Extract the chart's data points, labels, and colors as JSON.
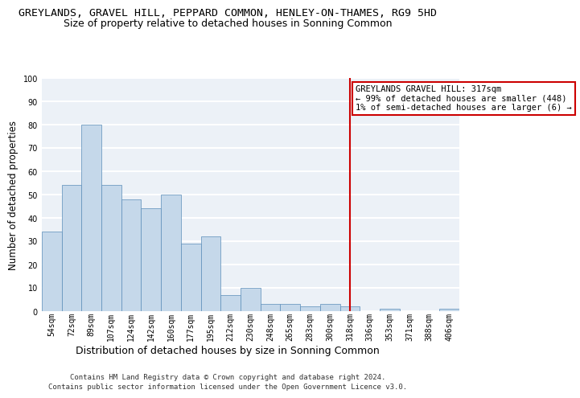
{
  "title_line1": "GREYLANDS, GRAVEL HILL, PEPPARD COMMON, HENLEY-ON-THAMES, RG9 5HD",
  "title_line2": "Size of property relative to detached houses in Sonning Common",
  "xlabel": "Distribution of detached houses by size in Sonning Common",
  "ylabel": "Number of detached properties",
  "footer_line1": "Contains HM Land Registry data © Crown copyright and database right 2024.",
  "footer_line2": "Contains public sector information licensed under the Open Government Licence v3.0.",
  "categories": [
    "54sqm",
    "72sqm",
    "89sqm",
    "107sqm",
    "124sqm",
    "142sqm",
    "160sqm",
    "177sqm",
    "195sqm",
    "212sqm",
    "230sqm",
    "248sqm",
    "265sqm",
    "283sqm",
    "300sqm",
    "318sqm",
    "336sqm",
    "353sqm",
    "371sqm",
    "388sqm",
    "406sqm"
  ],
  "values": [
    34,
    54,
    80,
    54,
    48,
    44,
    50,
    29,
    32,
    7,
    10,
    3,
    3,
    2,
    3,
    2,
    0,
    1,
    0,
    0,
    1
  ],
  "bar_color": "#c5d8ea",
  "bar_edge_color": "#5b8db8",
  "ylim": [
    0,
    100
  ],
  "yticks": [
    0,
    10,
    20,
    30,
    40,
    50,
    60,
    70,
    80,
    90,
    100
  ],
  "vline_bin_index": 15,
  "annotation_line1": "GREYLANDS GRAVEL HILL: 317sqm",
  "annotation_line2": "← 99% of detached houses are smaller (448)",
  "annotation_line3": "1% of semi-detached houses are larger (6) →",
  "box_edge_color": "#cc0000",
  "vline_color": "#cc0000",
  "background_color": "#ecf1f7",
  "grid_color": "#ffffff",
  "title_fontsize": 9.5,
  "subtitle_fontsize": 9,
  "tick_fontsize": 7,
  "ylabel_fontsize": 8.5,
  "xlabel_fontsize": 9,
  "ann_fontsize": 7.5,
  "footer_fontsize": 6.5
}
